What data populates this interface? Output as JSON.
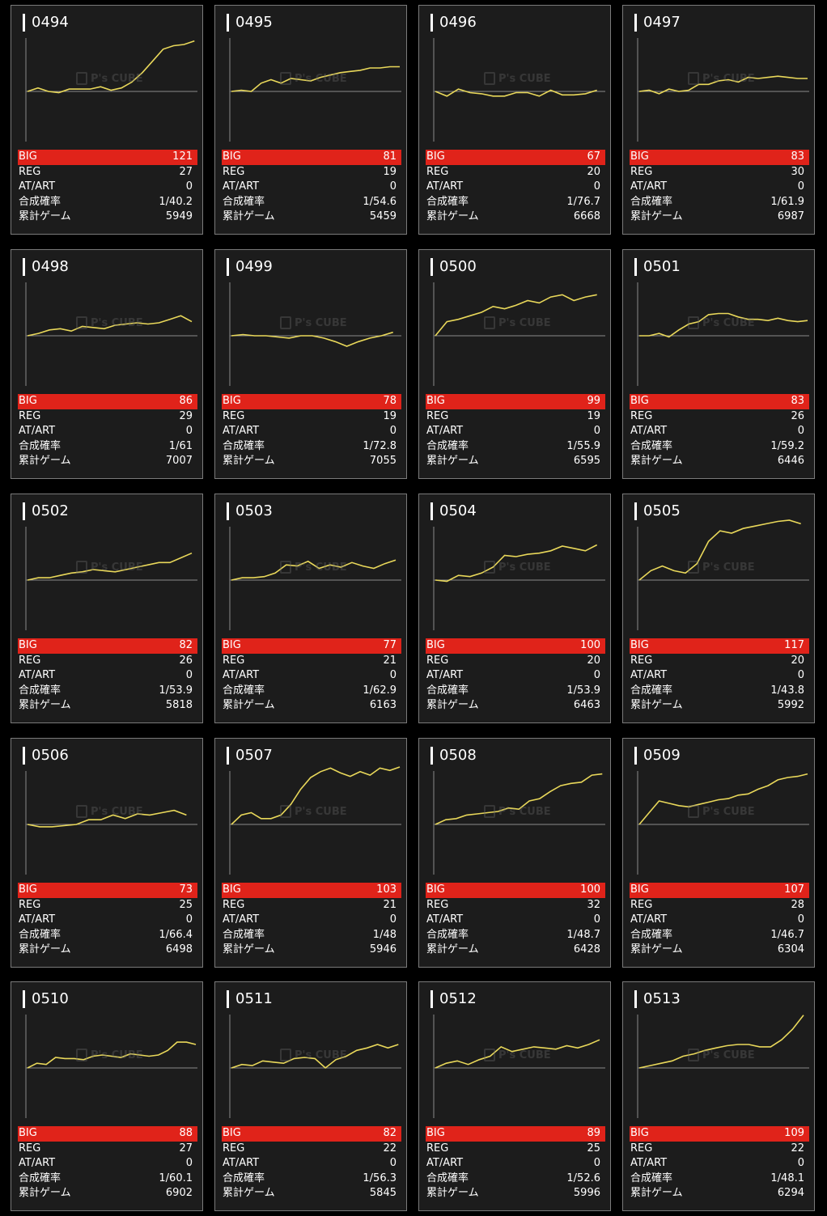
{
  "labels": {
    "big": "BIG",
    "reg": "REG",
    "atart": "AT/ART",
    "rate": "合成確率",
    "games": "累計ゲーム"
  },
  "watermark": "P's CUBE",
  "colors": {
    "line": "#e9d85a",
    "big_bar": "#e0231a",
    "card_bg": "#1c1c1c",
    "border": "#7a7a7a"
  },
  "machines": [
    {
      "id": "0494",
      "big": "121",
      "reg": "27",
      "atart": "0",
      "rate": "1/40.2",
      "games": "5949",
      "series": [
        0,
        3,
        0,
        -1,
        2,
        2,
        2,
        4,
        1,
        3,
        8,
        16,
        26,
        36,
        39,
        40,
        43
      ]
    },
    {
      "id": "0495",
      "big": "81",
      "reg": "19",
      "atart": "0",
      "rate": "1/54.6",
      "games": "5459",
      "series": [
        0,
        1,
        0,
        7,
        10,
        7,
        11,
        10,
        9,
        12,
        14,
        16,
        17,
        18,
        20,
        20,
        21,
        21
      ]
    },
    {
      "id": "0496",
      "big": "67",
      "reg": "20",
      "atart": "0",
      "rate": "1/76.7",
      "games": "6668",
      "series": [
        0,
        -4,
        2,
        -1,
        -2,
        -4,
        -4,
        -1,
        -1,
        -4,
        1,
        -3,
        -3,
        -2,
        1
      ]
    },
    {
      "id": "0497",
      "big": "83",
      "reg": "30",
      "atart": "0",
      "rate": "1/61.9",
      "games": "6987",
      "series": [
        0,
        1,
        -2,
        2,
        0,
        1,
        6,
        6,
        9,
        10,
        8,
        12,
        11,
        12,
        13,
        12,
        11,
        11
      ]
    },
    {
      "id": "0498",
      "big": "86",
      "reg": "29",
      "atart": "0",
      "rate": "1/61",
      "games": "7007",
      "series": [
        0,
        2,
        5,
        6,
        4,
        8,
        7,
        6,
        9,
        10,
        11,
        10,
        11,
        14,
        17,
        12
      ]
    },
    {
      "id": "0499",
      "big": "78",
      "reg": "19",
      "atart": "0",
      "rate": "1/72.8",
      "games": "7055",
      "series": [
        0,
        1,
        0,
        0,
        -1,
        -2,
        0,
        0,
        -2,
        -5,
        -9,
        -5,
        -2,
        0,
        3
      ]
    },
    {
      "id": "0500",
      "big": "99",
      "reg": "19",
      "atart": "0",
      "rate": "1/55.9",
      "games": "6595",
      "series": [
        0,
        12,
        14,
        17,
        20,
        25,
        23,
        26,
        30,
        28,
        33,
        35,
        30,
        33,
        35
      ]
    },
    {
      "id": "0501",
      "big": "83",
      "reg": "26",
      "atart": "0",
      "rate": "1/59.2",
      "games": "6446",
      "series": [
        0,
        0,
        2,
        -1,
        5,
        10,
        12,
        18,
        19,
        19,
        16,
        14,
        14,
        13,
        15,
        13,
        12,
        13
      ]
    },
    {
      "id": "0502",
      "big": "82",
      "reg": "26",
      "atart": "0",
      "rate": "1/53.9",
      "games": "5818",
      "series": [
        0,
        2,
        2,
        4,
        6,
        7,
        9,
        8,
        7,
        9,
        11,
        13,
        15,
        15,
        19,
        23
      ]
    },
    {
      "id": "0503",
      "big": "77",
      "reg": "21",
      "atart": "0",
      "rate": "1/62.9",
      "games": "6163",
      "series": [
        0,
        2,
        2,
        3,
        6,
        13,
        12,
        16,
        10,
        13,
        11,
        15,
        12,
        10,
        14,
        17
      ]
    },
    {
      "id": "0504",
      "big": "100",
      "reg": "20",
      "atart": "0",
      "rate": "1/53.9",
      "games": "6463",
      "series": [
        0,
        -1,
        4,
        3,
        6,
        11,
        21,
        20,
        22,
        23,
        25,
        29,
        27,
        25,
        30
      ]
    },
    {
      "id": "0505",
      "big": "117",
      "reg": "20",
      "atart": "0",
      "rate": "1/43.8",
      "games": "5992",
      "series": [
        0,
        8,
        12,
        8,
        6,
        14,
        33,
        42,
        40,
        44,
        46,
        48,
        50,
        51,
        48
      ]
    },
    {
      "id": "0506",
      "big": "73",
      "reg": "25",
      "atart": "0",
      "rate": "1/66.4",
      "games": "6498",
      "series": [
        0,
        -2,
        -2,
        -1,
        0,
        4,
        4,
        8,
        5,
        9,
        8,
        10,
        12,
        8
      ]
    },
    {
      "id": "0507",
      "big": "103",
      "reg": "21",
      "atart": "0",
      "rate": "1/48",
      "games": "5946",
      "series": [
        0,
        8,
        10,
        5,
        5,
        8,
        17,
        30,
        40,
        45,
        48,
        44,
        41,
        45,
        42,
        48,
        46,
        49
      ]
    },
    {
      "id": "0508",
      "big": "100",
      "reg": "32",
      "atart": "0",
      "rate": "1/48.7",
      "games": "6428",
      "series": [
        0,
        4,
        5,
        8,
        9,
        10,
        11,
        14,
        13,
        20,
        22,
        28,
        33,
        35,
        36,
        42,
        43
      ]
    },
    {
      "id": "0509",
      "big": "107",
      "reg": "28",
      "atart": "0",
      "rate": "1/46.7",
      "games": "6304",
      "series": [
        0,
        10,
        20,
        18,
        16,
        15,
        17,
        19,
        21,
        22,
        25,
        26,
        30,
        33,
        38,
        40,
        41,
        43
      ]
    },
    {
      "id": "0510",
      "big": "88",
      "reg": "27",
      "atart": "0",
      "rate": "1/60.1",
      "games": "6902",
      "series": [
        0,
        4,
        3,
        9,
        8,
        8,
        7,
        10,
        11,
        10,
        9,
        12,
        11,
        10,
        11,
        15,
        22,
        22,
        20
      ]
    },
    {
      "id": "0511",
      "big": "82",
      "reg": "22",
      "atart": "0",
      "rate": "1/56.3",
      "games": "5845",
      "series": [
        0,
        3,
        2,
        6,
        5,
        4,
        8,
        9,
        8,
        0,
        7,
        10,
        15,
        17,
        20,
        17,
        20
      ]
    },
    {
      "id": "0512",
      "big": "89",
      "reg": "25",
      "atart": "0",
      "rate": "1/52.6",
      "games": "5996",
      "series": [
        0,
        4,
        6,
        3,
        7,
        10,
        18,
        14,
        16,
        18,
        17,
        16,
        19,
        17,
        20,
        24
      ]
    },
    {
      "id": "0513",
      "big": "109",
      "reg": "22",
      "atart": "0",
      "rate": "1/48.1",
      "games": "6294",
      "series": [
        0,
        2,
        4,
        6,
        10,
        12,
        15,
        17,
        19,
        20,
        20,
        18,
        18,
        24,
        33,
        45
      ]
    }
  ]
}
